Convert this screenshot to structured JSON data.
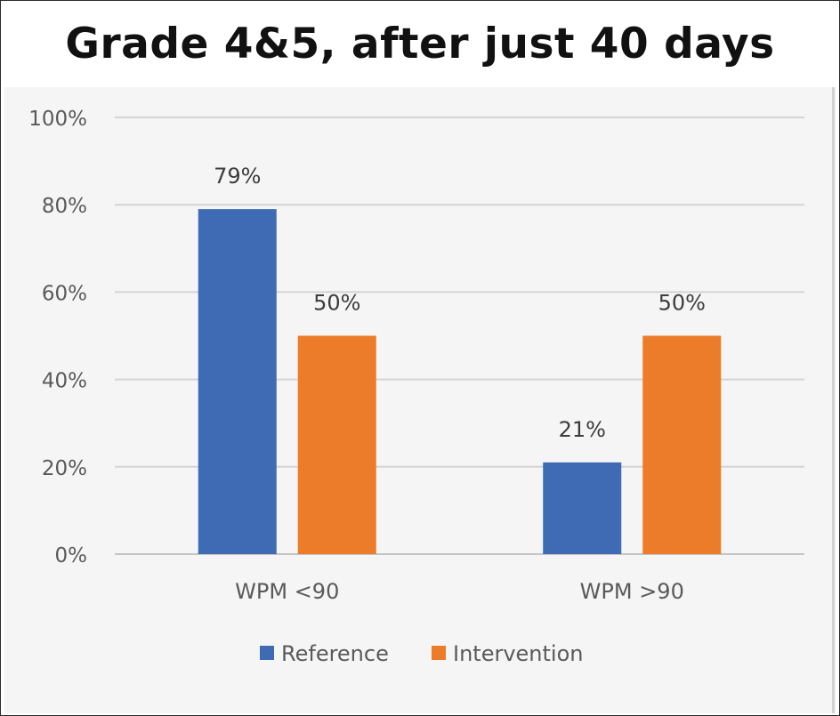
{
  "title": "Grade 4&5, after just 40 days",
  "chart_data": {
    "type": "bar",
    "categories": [
      "WPM <90",
      "WPM >90"
    ],
    "series": [
      {
        "name": "Reference",
        "values": [
          79,
          21
        ],
        "labels": [
          "79%",
          "21%"
        ],
        "color": "#3e6bb4"
      },
      {
        "name": "Intervention",
        "values": [
          50,
          50
        ],
        "labels": [
          "50%",
          "50%"
        ],
        "color": "#ec7b2a"
      }
    ],
    "yticks": [
      "0%",
      "20%",
      "40%",
      "60%",
      "80%",
      "100%"
    ],
    "ylim": [
      0,
      100
    ],
    "grid": true,
    "legend": "bottom-center"
  }
}
